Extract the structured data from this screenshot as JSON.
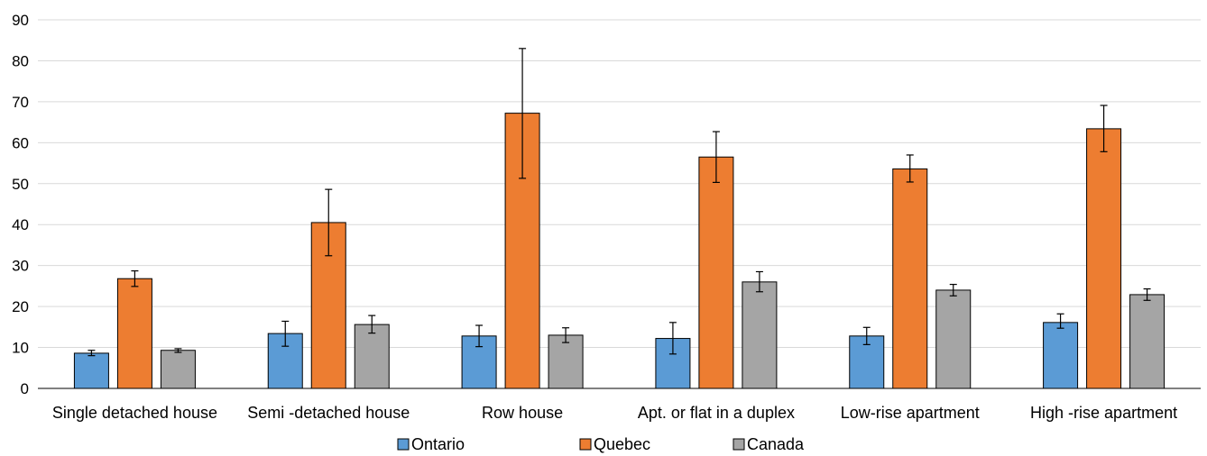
{
  "chart_data": {
    "type": "bar",
    "title": "",
    "xlabel": "",
    "ylabel": "",
    "ylim": [
      0,
      90
    ],
    "yticks": [
      "0",
      "10",
      "20",
      "30",
      "40",
      "50",
      "60",
      "70",
      "80",
      "90"
    ],
    "grid": true,
    "legend_position": "bottom",
    "categories": [
      "Single detached house",
      "Semi -detached house",
      "Row house",
      "Apt. or flat in a duplex",
      "Low-rise apartment",
      "High -rise apartment"
    ],
    "series": [
      {
        "name": "Ontario",
        "color": "#5b9bd5",
        "values": [
          8.6,
          13.4,
          12.8,
          12.2,
          12.8,
          16.1
        ],
        "err_low": [
          8.0,
          10.3,
          10.2,
          8.4,
          10.7,
          14.7
        ],
        "err_high": [
          9.3,
          16.4,
          15.4,
          16.1,
          14.9,
          18.2
        ]
      },
      {
        "name": "Quebec",
        "color": "#ed7d31",
        "values": [
          26.8,
          40.5,
          67.2,
          56.5,
          53.6,
          63.4
        ],
        "err_low": [
          24.9,
          32.4,
          51.3,
          50.3,
          50.4,
          57.8
        ],
        "err_high": [
          28.7,
          48.6,
          83.0,
          62.7,
          57.0,
          69.1
        ]
      },
      {
        "name": "Canada",
        "color": "#a5a5a5",
        "values": [
          9.3,
          15.6,
          13.0,
          26.0,
          24.0,
          22.9
        ],
        "err_low": [
          8.8,
          13.5,
          11.2,
          23.6,
          22.6,
          21.5
        ],
        "err_high": [
          9.7,
          17.8,
          14.8,
          28.5,
          25.4,
          24.3
        ]
      }
    ]
  }
}
